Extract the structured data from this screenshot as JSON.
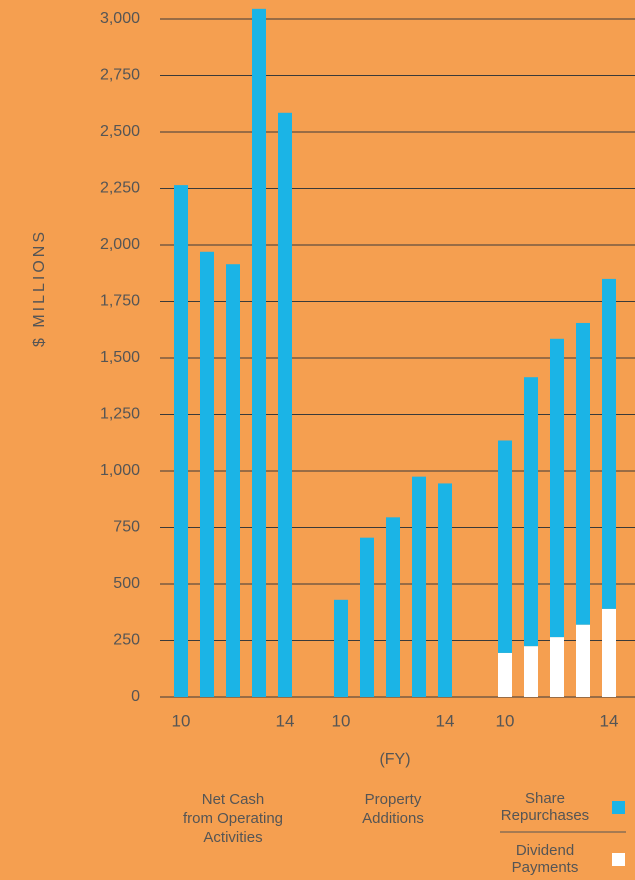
{
  "chart_data": {
    "type": "bar",
    "ylabel": "$ MILLIONS",
    "xlabel": "(FY)",
    "ylim": [
      0,
      3000
    ],
    "yticks": [
      0,
      250,
      500,
      750,
      {
        "value": 1000,
        "label": "1,000"
      },
      {
        "value": 1250,
        "label": "1,250"
      },
      {
        "value": 1500,
        "label": "1,500"
      },
      {
        "value": 1750,
        "label": "1,750"
      },
      {
        "value": 2000,
        "label": "2,000"
      },
      {
        "value": 2250,
        "label": "2,250"
      },
      {
        "value": 2500,
        "label": "2,500"
      },
      {
        "value": 2750,
        "label": "2,750"
      },
      {
        "value": 3000,
        "label": "3,000"
      }
    ],
    "grid": true,
    "groups": [
      {
        "label": [
          "Net Cash",
          "from Operating",
          "Activities"
        ],
        "categories": [
          "10",
          null,
          null,
          null,
          "14"
        ],
        "color": "#1bb4e6",
        "values": [
          2265,
          1970,
          1915,
          3045,
          2585
        ]
      },
      {
        "label": [
          "Property",
          "Additions"
        ],
        "categories": [
          "10",
          null,
          null,
          null,
          "14"
        ],
        "color": "#1bb4e6",
        "values": [
          430,
          705,
          795,
          975,
          945
        ]
      },
      {
        "categories": [
          "10",
          null,
          null,
          null,
          "14"
        ],
        "series": [
          {
            "name": "Dividend Payments",
            "color": "#ffffff",
            "values": [
              195,
              225,
              265,
              320,
              390
            ]
          },
          {
            "name": "Share Repurchases",
            "color": "#1bb4e6",
            "values": [
              940,
              1190,
              1320,
              1335,
              1460
            ]
          }
        ]
      }
    ]
  }
}
